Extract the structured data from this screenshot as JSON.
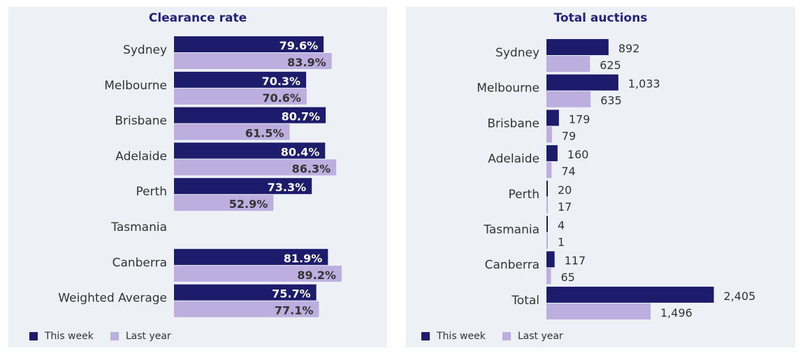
{
  "colors": {
    "this_week": "#1d1b6b",
    "last_year": "#bcaede",
    "label_this_week": "#ffffff",
    "label_last_year": "#333333",
    "panel_bg": "#edf1f5"
  },
  "legend": {
    "this_week": "This week",
    "last_year": "Last year"
  },
  "chart_data": [
    {
      "type": "bar",
      "orientation": "horizontal",
      "title": "Clearance rate",
      "categories": [
        "Sydney",
        "Melbourne",
        "Brisbane",
        "Adelaide",
        "Perth",
        "Tasmania",
        "Canberra",
        "Weighted Average"
      ],
      "series": [
        {
          "name": "This week",
          "values": [
            79.6,
            70.3,
            80.7,
            80.4,
            73.3,
            null,
            81.9,
            75.7
          ],
          "labels": [
            "79.6%",
            "70.3%",
            "80.7%",
            "80.4%",
            "73.3%",
            "",
            "81.9%",
            "75.7%"
          ]
        },
        {
          "name": "Last year",
          "values": [
            83.9,
            70.6,
            61.5,
            86.3,
            52.9,
            null,
            89.2,
            77.1
          ],
          "labels": [
            "83.9%",
            "70.6%",
            "61.5%",
            "86.3%",
            "52.9%",
            "",
            "89.2%",
            "77.1%"
          ]
        }
      ],
      "xlim": [
        0,
        100
      ],
      "legend_position": "bottom-left",
      "grid": false
    },
    {
      "type": "bar",
      "orientation": "horizontal",
      "title": "Total auctions",
      "categories": [
        "Sydney",
        "Melbourne",
        "Brisbane",
        "Adelaide",
        "Perth",
        "Tasmania",
        "Canberra",
        "Total"
      ],
      "series": [
        {
          "name": "This week",
          "values": [
            892,
            1033,
            179,
            160,
            20,
            4,
            117,
            2405
          ],
          "labels": [
            "892",
            "1,033",
            "179",
            "160",
            "20",
            "4",
            "117",
            "2,405"
          ]
        },
        {
          "name": "Last year",
          "values": [
            625,
            635,
            79,
            74,
            17,
            1,
            65,
            1496
          ],
          "labels": [
            "625",
            "635",
            "79",
            "74",
            "17",
            "1",
            "65",
            "1,496"
          ]
        }
      ],
      "xlim": [
        0,
        2500
      ],
      "legend_position": "bottom-left",
      "grid": false
    }
  ]
}
